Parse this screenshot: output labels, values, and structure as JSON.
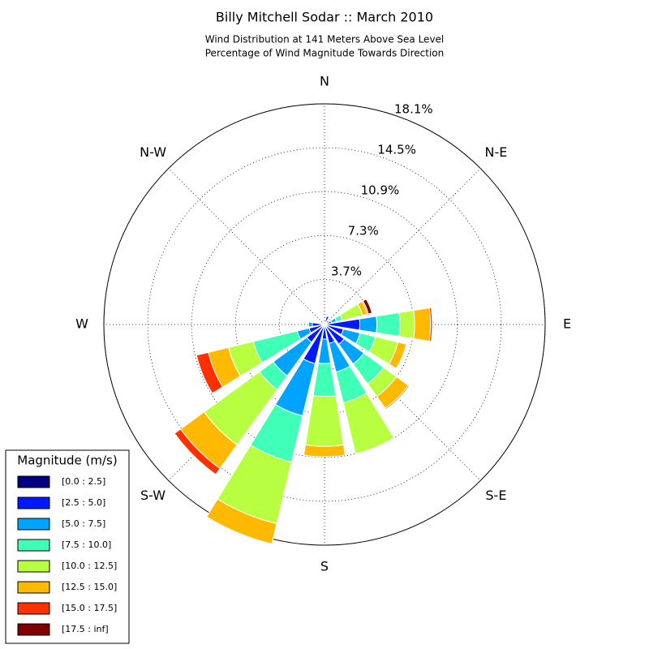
{
  "chart_data": {
    "type": "windrose",
    "title": "Billy Mitchell Sodar :: March 2010",
    "subtitle": [
      "Wind Distribution at 141 Meters Above Sea Level",
      "Percentage of Wind Magnitude Towards Direction"
    ],
    "x": [
      0,
      22.5,
      45,
      67.5,
      90,
      112.5,
      135,
      157.5,
      180,
      202.5,
      225,
      247.5,
      270,
      292.5,
      315,
      337.5
    ],
    "xticks": [
      {
        "value": 0,
        "label": "N"
      },
      {
        "value": 45,
        "label": "N-E"
      },
      {
        "value": 90,
        "label": "E"
      },
      {
        "value": 135,
        "label": "S-E"
      },
      {
        "value": 180,
        "label": "S"
      },
      {
        "value": 225,
        "label": "S-W"
      },
      {
        "value": 270,
        "label": "W"
      },
      {
        "value": 315,
        "label": "N-W"
      }
    ],
    "ylim": [
      0,
      18.1
    ],
    "yticks": [
      {
        "value": 3.7,
        "label": "3.7%"
      },
      {
        "value": 7.3,
        "label": "7.3%"
      },
      {
        "value": 10.9,
        "label": "10.9%"
      },
      {
        "value": 14.5,
        "label": "14.5%"
      },
      {
        "value": 18.1,
        "label": "18.1%"
      }
    ],
    "grid": true,
    "legend_title": "Magnitude (m/s)",
    "legend": "lower left",
    "series": [
      {
        "name": "[0.0 : 2.5]",
        "color": "#000080",
        "values": [
          0.1,
          0.2,
          0,
          0.1,
          0.2,
          0.2,
          0.2,
          0.2,
          0.2,
          0.2,
          0.2,
          0.1,
          0.2,
          0.1,
          0,
          0
        ]
      },
      {
        "name": "[2.5 : 5.0]",
        "color": "#0019ff",
        "values": [
          0,
          0.5,
          0.1,
          0.5,
          2.7,
          1.4,
          1.8,
          1.4,
          1.0,
          3.1,
          1.6,
          1.2,
          0.8,
          0.2,
          0,
          0
        ]
      },
      {
        "name": "[5.0 : 7.5]",
        "color": "#00a4ff",
        "values": [
          0,
          0,
          0,
          0.4,
          1.4,
          1.4,
          2.0,
          2.4,
          2.0,
          4.4,
          3.4,
          1.0,
          0.3,
          0,
          0,
          0
        ]
      },
      {
        "name": "[7.5 : 10.0]",
        "color": "#40ffb7",
        "values": [
          0,
          0,
          0,
          0.5,
          1.9,
          1.3,
          2.0,
          2.6,
          2.7,
          3.9,
          1.4,
          3.7,
          0,
          0,
          0,
          0
        ]
      },
      {
        "name": "[10.0 : 12.5]",
        "color": "#b7ff40",
        "values": [
          0,
          0,
          0,
          1.7,
          1.2,
          1.9,
          1.3,
          4.3,
          4.1,
          5.2,
          5.6,
          2.1,
          0,
          0,
          0,
          0
        ]
      },
      {
        "name": "[12.5 : 15.0]",
        "color": "#ffb900",
        "values": [
          0,
          0,
          0,
          0.4,
          1.3,
          0.7,
          1.2,
          0,
          0.85,
          1.7,
          2.4,
          1.7,
          0,
          0,
          0,
          0
        ]
      },
      {
        "name": "[15.0 : 17.5]",
        "color": "#ff3000",
        "values": [
          0,
          0,
          0,
          0.1,
          0.15,
          0,
          0.1,
          0,
          0,
          0,
          0.6,
          1.0,
          0,
          0,
          0,
          0
        ]
      },
      {
        "name": "[17.5 : inf]",
        "color": "#800000",
        "values": [
          0,
          0,
          0,
          0.3,
          0,
          0,
          0,
          0,
          0,
          0,
          0,
          0,
          0,
          0,
          0,
          0
        ]
      }
    ]
  }
}
